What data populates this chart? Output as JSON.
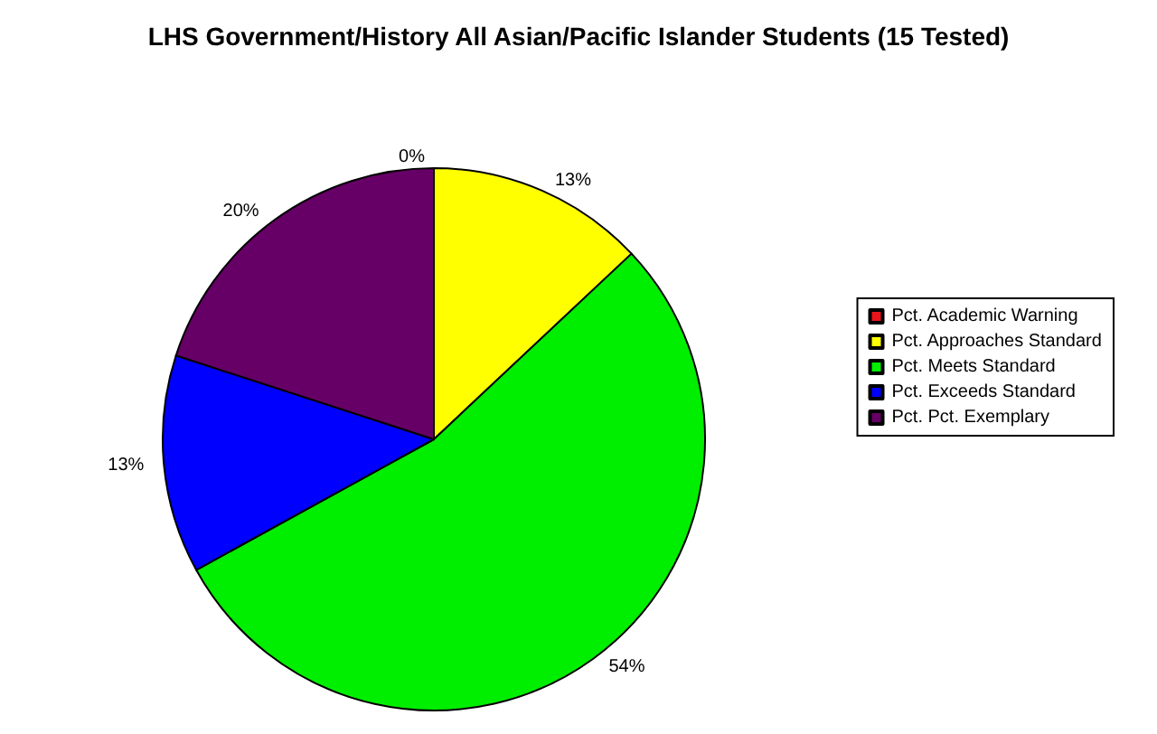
{
  "chart_data": {
    "type": "pie",
    "title": "LHS Government/History All Asian/Pacific Islander Students (15 Tested)",
    "categories": [
      "Pct. Academic Warning",
      "Pct. Approaches Standard",
      "Pct. Meets Standard",
      "Pct. Exceeds Standard",
      "Pct. Pct. Exemplary"
    ],
    "values": [
      0,
      13,
      54,
      13,
      20
    ],
    "colors": [
      "#e8141b",
      "#ffff00",
      "#00ee00",
      "#0000ff",
      "#660066"
    ],
    "value_labels": [
      "0%",
      "13%",
      "54%",
      "13%",
      "20%"
    ],
    "legend": "right"
  }
}
